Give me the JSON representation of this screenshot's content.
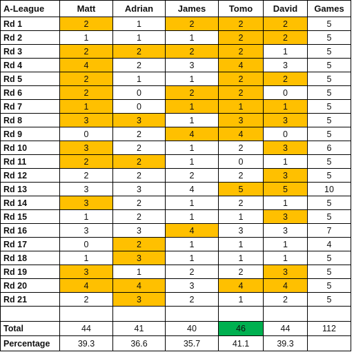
{
  "header": {
    "league": "A-League",
    "columns": [
      "Matt",
      "Adrian",
      "James",
      "Tomo",
      "David",
      "Games"
    ]
  },
  "highlight_color": "#ffc000",
  "winner_color": "#00b050",
  "rounds": [
    {
      "label": "Rd 1",
      "scores": [
        2,
        1,
        2,
        2,
        2
      ],
      "games": 5,
      "highlight": [
        true,
        false,
        true,
        true,
        true
      ]
    },
    {
      "label": "Rd 2",
      "scores": [
        1,
        1,
        1,
        2,
        2
      ],
      "games": 5,
      "highlight": [
        false,
        false,
        false,
        true,
        true
      ]
    },
    {
      "label": "Rd 3",
      "scores": [
        2,
        2,
        2,
        2,
        1
      ],
      "games": 5,
      "highlight": [
        true,
        true,
        true,
        true,
        false
      ]
    },
    {
      "label": "Rd 4",
      "scores": [
        4,
        2,
        3,
        4,
        3
      ],
      "games": 5,
      "highlight": [
        true,
        false,
        false,
        true,
        false
      ]
    },
    {
      "label": "Rd 5",
      "scores": [
        2,
        1,
        1,
        2,
        2
      ],
      "games": 5,
      "highlight": [
        true,
        false,
        false,
        true,
        true
      ]
    },
    {
      "label": "Rd 6",
      "scores": [
        2,
        0,
        2,
        2,
        0
      ],
      "games": 5,
      "highlight": [
        true,
        false,
        true,
        true,
        false
      ]
    },
    {
      "label": "Rd 7",
      "scores": [
        1,
        0,
        1,
        1,
        1
      ],
      "games": 5,
      "highlight": [
        true,
        false,
        true,
        true,
        true
      ]
    },
    {
      "label": "Rd 8",
      "scores": [
        3,
        3,
        1,
        3,
        3
      ],
      "games": 5,
      "highlight": [
        true,
        true,
        false,
        true,
        true
      ]
    },
    {
      "label": "Rd 9",
      "scores": [
        0,
        2,
        4,
        4,
        0
      ],
      "games": 5,
      "highlight": [
        false,
        false,
        true,
        true,
        false
      ]
    },
    {
      "label": "Rd 10",
      "scores": [
        3,
        2,
        1,
        2,
        3
      ],
      "games": 6,
      "highlight": [
        true,
        false,
        false,
        false,
        true
      ]
    },
    {
      "label": "Rd 11",
      "scores": [
        2,
        2,
        1,
        0,
        1
      ],
      "games": 5,
      "highlight": [
        true,
        true,
        false,
        false,
        false
      ]
    },
    {
      "label": "Rd 12",
      "scores": [
        2,
        2,
        2,
        2,
        3
      ],
      "games": 5,
      "highlight": [
        false,
        false,
        false,
        false,
        true
      ]
    },
    {
      "label": "Rd 13",
      "scores": [
        3,
        3,
        4,
        5,
        5
      ],
      "games": 10,
      "highlight": [
        false,
        false,
        false,
        true,
        true
      ]
    },
    {
      "label": "Rd 14",
      "scores": [
        3,
        2,
        1,
        2,
        1
      ],
      "games": 5,
      "highlight": [
        true,
        false,
        false,
        false,
        false
      ]
    },
    {
      "label": "Rd 15",
      "scores": [
        1,
        2,
        1,
        1,
        3
      ],
      "games": 5,
      "highlight": [
        false,
        false,
        false,
        false,
        true
      ]
    },
    {
      "label": "Rd 16",
      "scores": [
        3,
        3,
        4,
        3,
        3
      ],
      "games": 7,
      "highlight": [
        false,
        false,
        true,
        false,
        false
      ]
    },
    {
      "label": "Rd 17",
      "scores": [
        0,
        2,
        1,
        1,
        1
      ],
      "games": 4,
      "highlight": [
        false,
        true,
        false,
        false,
        false
      ]
    },
    {
      "label": "Rd 18",
      "scores": [
        1,
        3,
        1,
        1,
        1
      ],
      "games": 5,
      "highlight": [
        false,
        true,
        false,
        false,
        false
      ]
    },
    {
      "label": "Rd 19",
      "scores": [
        3,
        1,
        2,
        2,
        3
      ],
      "games": 5,
      "highlight": [
        true,
        false,
        false,
        false,
        true
      ]
    },
    {
      "label": "Rd 20",
      "scores": [
        4,
        4,
        3,
        4,
        4
      ],
      "games": 5,
      "highlight": [
        true,
        true,
        false,
        true,
        true
      ]
    },
    {
      "label": "Rd 21",
      "scores": [
        2,
        3,
        2,
        1,
        2
      ],
      "games": 5,
      "highlight": [
        false,
        true,
        false,
        false,
        false
      ]
    }
  ],
  "total": {
    "label": "Total",
    "values": [
      44,
      41,
      40,
      46,
      44
    ],
    "games": 112,
    "winner_index": 3
  },
  "percentage": {
    "label": "Percentage",
    "values": [
      "39.3",
      "36.6",
      "35.7",
      "41.1",
      "39.3"
    ]
  }
}
